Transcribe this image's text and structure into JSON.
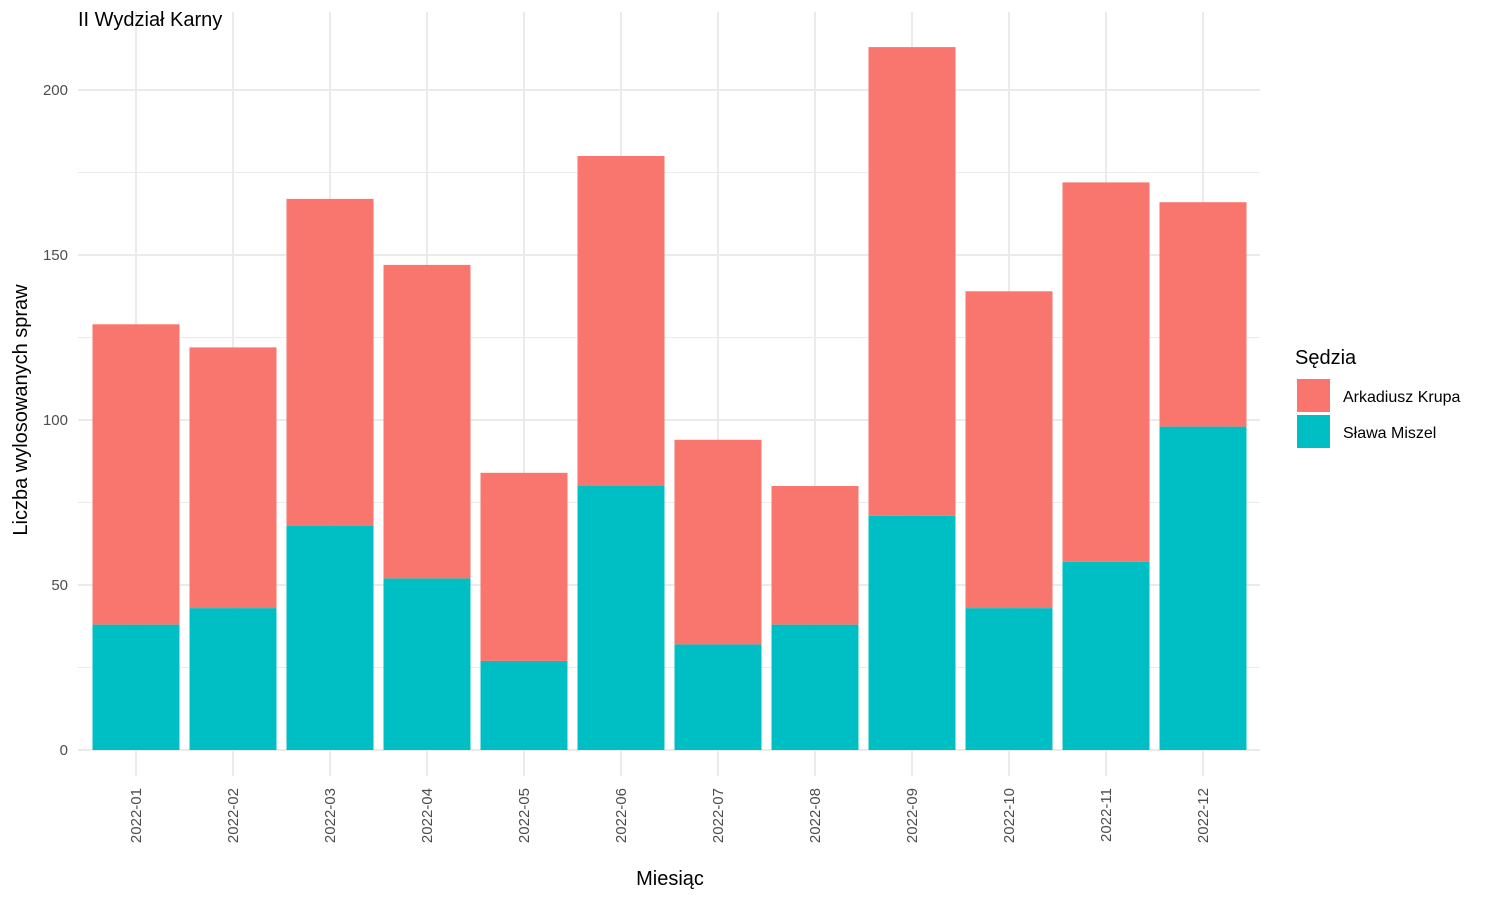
{
  "chart_data": {
    "type": "bar",
    "stacked": true,
    "title": "II Wydział Karny",
    "xlabel": "Miesiąc",
    "ylabel": "Liczba wylosowanych spraw",
    "ylim": [
      0,
      220
    ],
    "yticks": [
      0,
      50,
      100,
      150,
      200
    ],
    "grid": true,
    "legend_title": "Sędzia",
    "legend_position": "right",
    "categories": [
      "2022-01",
      "2022-02",
      "2022-03",
      "2022-04",
      "2022-05",
      "2022-06",
      "2022-07",
      "2022-08",
      "2022-09",
      "2022-10",
      "2022-11",
      "2022-12"
    ],
    "series": [
      {
        "name": "Sława Miszel",
        "color": "#00BFC4",
        "values": [
          38,
          43,
          68,
          52,
          27,
          80,
          32,
          38,
          71,
          43,
          57,
          98
        ]
      },
      {
        "name": "Arkadiusz Krupa",
        "color": "#F8766D",
        "values": [
          91,
          79,
          99,
          95,
          57,
          100,
          62,
          42,
          142,
          96,
          115,
          68
        ]
      }
    ],
    "legend_order": [
      "Arkadiusz Krupa",
      "Sława Miszel"
    ]
  }
}
